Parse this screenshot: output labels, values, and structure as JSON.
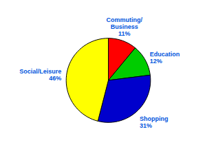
{
  "chart_data": {
    "type": "pie",
    "categories": [
      "Commuting/\nBusiness",
      "Education",
      "Shopping",
      "Social/Leisure"
    ],
    "values": [
      11,
      12,
      31,
      46
    ],
    "value_labels": [
      "11%",
      "12%",
      "31%",
      "46%"
    ],
    "colors": [
      "#ff0000",
      "#00cc00",
      "#0000cc",
      "#ffff00"
    ],
    "data_labels": true
  }
}
